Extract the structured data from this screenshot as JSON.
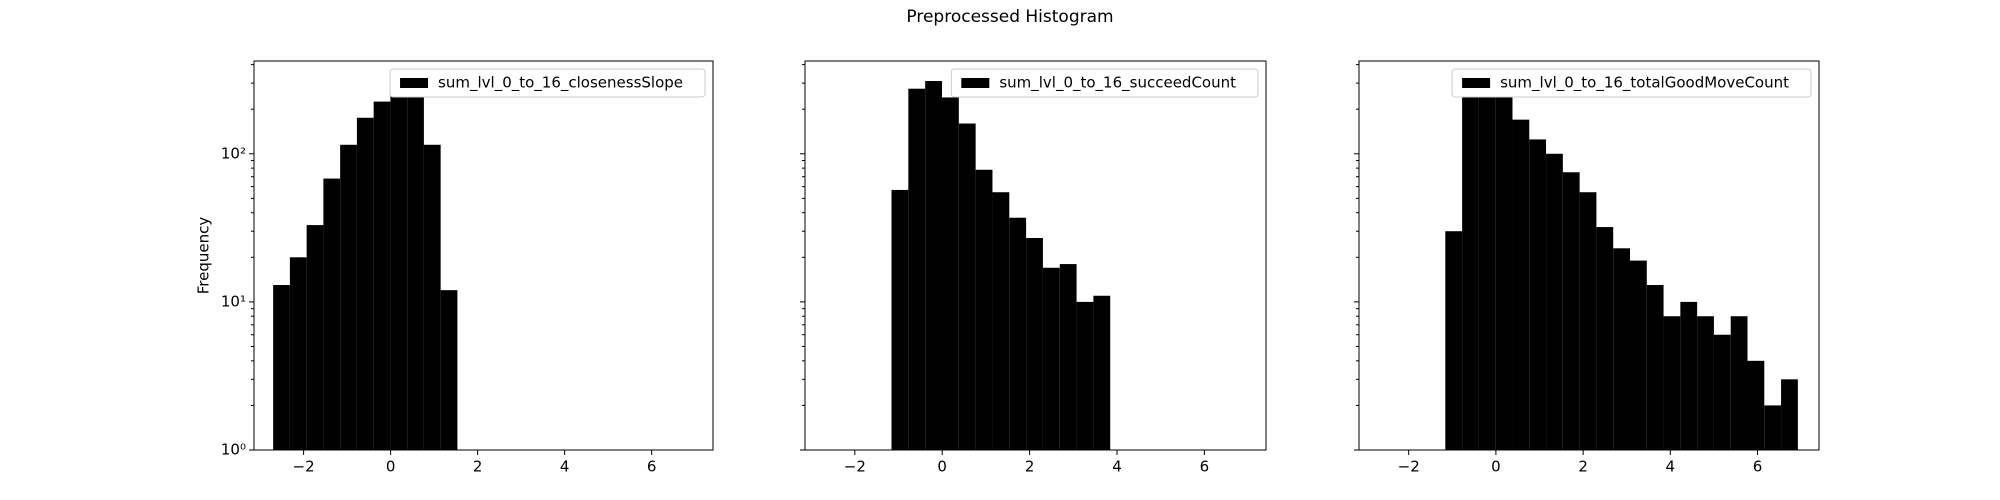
{
  "title": "Preprocessed Histogram",
  "chart_data": [
    {
      "type": "histogram",
      "ylabel": "Frequency",
      "log_y": true,
      "legend": "upper right",
      "series": [
        {
          "name": "sum_lvl_0_to_16_closenessSlope",
          "color": "#000000",
          "bins": [
            -2.7,
            -2.315,
            -1.93,
            -1.545,
            -1.16,
            -0.775,
            -0.39,
            -0.005,
            0.38,
            0.765,
            1.15,
            1.535
          ],
          "values": [
            13,
            20,
            33,
            68,
            115,
            175,
            225,
            280,
            240,
            115,
            12
          ]
        }
      ],
      "xlim": [
        -3.14,
        7.41
      ],
      "ylim": [
        1,
        423
      ],
      "xticks": [
        {
          "value": -2,
          "label": "−2"
        },
        0,
        2,
        4,
        6
      ],
      "yticks": [
        {
          "value": 1,
          "label": "10⁰"
        },
        {
          "value": 10,
          "label": "10¹"
        },
        {
          "value": 100,
          "label": "10²"
        }
      ]
    },
    {
      "type": "histogram",
      "log_y": true,
      "legend": "upper right",
      "series": [
        {
          "name": "sum_lvl_0_to_16_succeedCount",
          "color": "#000000",
          "bins": [
            -1.16,
            -0.775,
            -0.39,
            -0.005,
            0.38,
            0.765,
            1.15,
            1.535,
            1.92,
            2.305,
            2.69,
            3.075,
            3.46,
            3.845
          ],
          "values": [
            57,
            275,
            310,
            240,
            160,
            78,
            55,
            37,
            27,
            17,
            18,
            10,
            11
          ]
        }
      ],
      "xlim": [
        -3.14,
        7.41
      ],
      "ylim": [
        1,
        423
      ],
      "xticks": [
        {
          "value": -2,
          "label": "−2"
        },
        0,
        2,
        4,
        6
      ]
    },
    {
      "type": "histogram",
      "log_y": true,
      "legend": "upper right",
      "series": [
        {
          "name": "sum_lvl_0_to_16_totalGoodMoveCount",
          "color": "#000000",
          "bins": [
            -1.16,
            -0.775,
            -0.39,
            -0.005,
            0.38,
            0.765,
            1.15,
            1.535,
            1.92,
            2.305,
            2.69,
            3.075,
            3.46,
            3.845,
            4.23,
            4.615,
            5.0,
            5.385,
            5.77,
            6.155,
            6.54,
            6.925
          ],
          "values": [
            30,
            330,
            290,
            240,
            170,
            125,
            100,
            75,
            55,
            32,
            23,
            19,
            13,
            8,
            10,
            8,
            6,
            8,
            4,
            2,
            3
          ]
        }
      ],
      "xlim": [
        -3.14,
        7.41
      ],
      "ylim": [
        1,
        423
      ],
      "xticks": [
        {
          "value": -2,
          "label": "−2"
        },
        0,
        2,
        4,
        6
      ]
    }
  ]
}
